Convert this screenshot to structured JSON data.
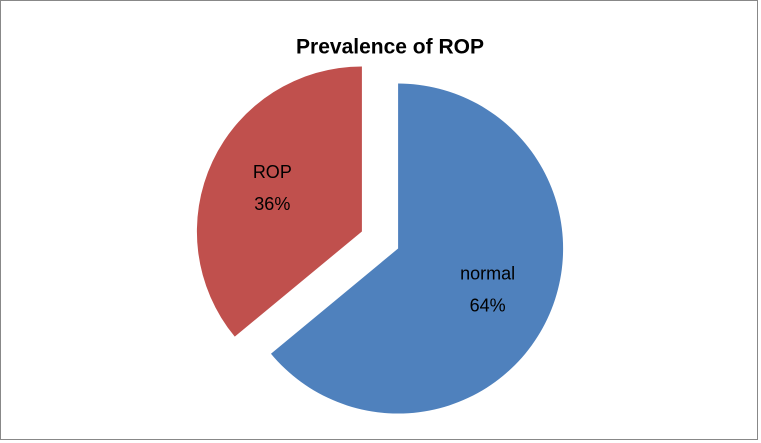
{
  "chart_data": {
    "type": "pie",
    "title": "Prevalence of ROP",
    "categories": [
      "normal",
      "ROP"
    ],
    "values": [
      64,
      36
    ],
    "value_labels": [
      "64%",
      "36%"
    ],
    "colors": [
      "#4f81bd",
      "#c0504d"
    ],
    "start_angle": 0,
    "direction": "clockwise",
    "exploded": true
  }
}
